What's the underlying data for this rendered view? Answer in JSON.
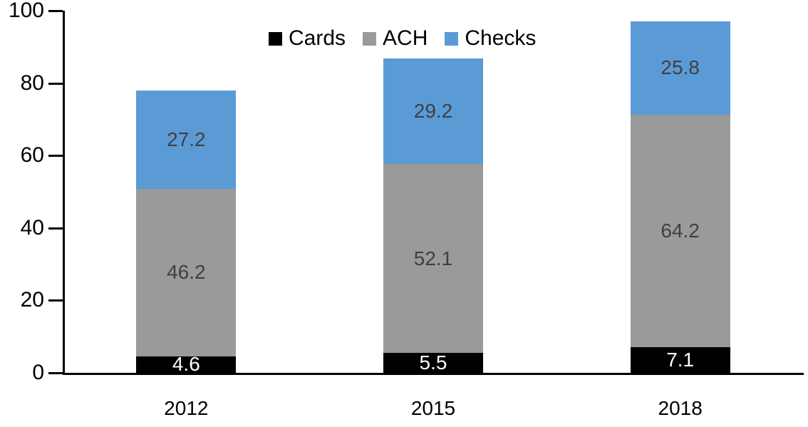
{
  "chart_data": {
    "type": "bar",
    "subtype": "stacked-column",
    "title": "",
    "categories": [
      "2012",
      "2015",
      "2018"
    ],
    "series": [
      {
        "name": "Cards",
        "color": "#000000",
        "label_color": "#ffffff",
        "values": [
          4.6,
          5.5,
          7.1
        ]
      },
      {
        "name": "ACH",
        "color": "#9a9a9a",
        "label_color": "#404040",
        "values": [
          46.2,
          52.1,
          64.2
        ]
      },
      {
        "name": "Checks",
        "color": "#5b9bd5",
        "label_color": "#404040",
        "values": [
          27.2,
          29.2,
          25.8
        ]
      }
    ],
    "data_labels": [
      "4.6",
      "5.5",
      "7.1",
      "46.2",
      "52.1",
      "64.2",
      "27.2",
      "29.2",
      "25.8"
    ],
    "y_axis": {
      "min": 0,
      "max": 100,
      "tick_values": [
        0,
        20,
        40,
        60,
        80,
        100
      ],
      "tick_labels": [
        "0",
        "20",
        "40",
        "60",
        "80",
        "100"
      ]
    },
    "x_axis": {
      "labels": [
        "2012",
        "2015",
        "2018"
      ]
    },
    "legend": {
      "position": "top",
      "entries": [
        "Cards",
        "ACH",
        "Checks"
      ]
    },
    "grid": false,
    "show_data_labels": true,
    "axis_color": "#000000",
    "background": "#ffffff"
  }
}
